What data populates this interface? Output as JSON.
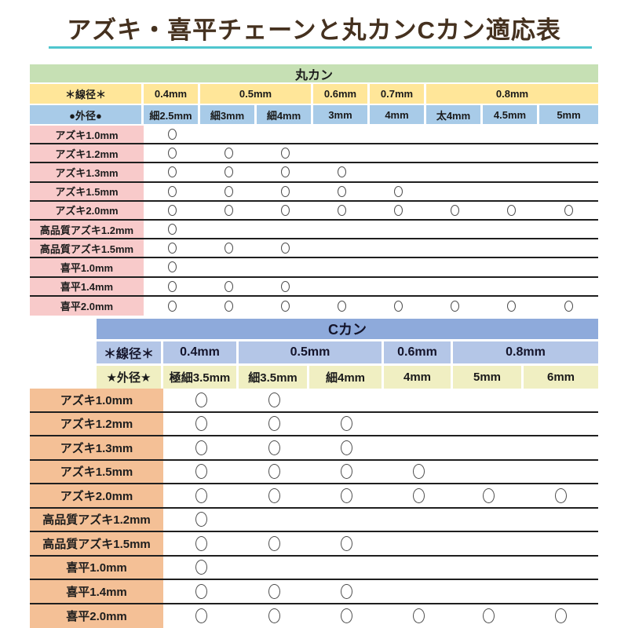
{
  "title": "アズキ・喜平チェーンと丸カンCカン適応表",
  "mark_symbol": "○",
  "colors": {
    "title_text": "#45311f",
    "title_underline": "#4fc6ce",
    "maru_header_green": "#c6e0b4",
    "maru_wire_row_yellow": "#ffe699",
    "maru_outer_row_blue": "#a8cbe8",
    "maru_label_col_pink": "#f8caca",
    "c_header_blue": "#8eaadb",
    "c_wire_row_lavender": "#b4c6e7",
    "c_outer_row_pale_yellow": "#f0efc2",
    "c_label_col_orange": "#f4c096",
    "row_separator": "#1f1f1f",
    "mark_outline": "#4e4e4e"
  },
  "chart_data": [
    {
      "type": "table",
      "title": "丸カン",
      "wire_header": "＊線径＊",
      "outer_header": "●外径●",
      "wire_groups": [
        {
          "label": "0.4mm",
          "span": 1
        },
        {
          "label": "0.5mm",
          "span": 2
        },
        {
          "label": "0.6mm",
          "span": 1
        },
        {
          "label": "0.7mm",
          "span": 1
        },
        {
          "label": "0.8mm",
          "span": 3
        }
      ],
      "outer_sizes": [
        "細2.5mm",
        "細3mm",
        "細4mm",
        "3mm",
        "4mm",
        "太4mm",
        "4.5mm",
        "5mm"
      ],
      "rows": [
        {
          "label": "アズキ1.0mm",
          "marks": [
            1,
            0,
            0,
            0,
            0,
            0,
            0,
            0
          ]
        },
        {
          "label": "アズキ1.2mm",
          "marks": [
            1,
            1,
            1,
            0,
            0,
            0,
            0,
            0
          ]
        },
        {
          "label": "アズキ1.3mm",
          "marks": [
            1,
            1,
            1,
            1,
            0,
            0,
            0,
            0
          ]
        },
        {
          "label": "アズキ1.5mm",
          "marks": [
            1,
            1,
            1,
            1,
            1,
            0,
            0,
            0
          ]
        },
        {
          "label": "アズキ2.0mm",
          "marks": [
            1,
            1,
            1,
            1,
            1,
            1,
            1,
            1
          ]
        },
        {
          "label": "高品質アズキ1.2mm",
          "marks": [
            1,
            0,
            0,
            0,
            0,
            0,
            0,
            0
          ]
        },
        {
          "label": "高品質アズキ1.5mm",
          "marks": [
            1,
            1,
            1,
            0,
            0,
            0,
            0,
            0
          ]
        },
        {
          "label": "喜平1.0mm",
          "marks": [
            1,
            0,
            0,
            0,
            0,
            0,
            0,
            0
          ]
        },
        {
          "label": "喜平1.4mm",
          "marks": [
            1,
            1,
            1,
            0,
            0,
            0,
            0,
            0
          ]
        },
        {
          "label": "喜平2.0mm",
          "marks": [
            1,
            1,
            1,
            1,
            1,
            1,
            1,
            1
          ]
        }
      ]
    },
    {
      "type": "table",
      "title": "Cカン",
      "wire_header": "＊線径＊",
      "outer_header": "★外径★",
      "wire_groups": [
        {
          "label": "0.4mm",
          "span": 1
        },
        {
          "label": "0.5mm",
          "span": 2
        },
        {
          "label": "0.6mm",
          "span": 1
        },
        {
          "label": "0.8mm",
          "span": 2
        }
      ],
      "outer_sizes": [
        "極細3.5mm",
        "細3.5mm",
        "細4mm",
        "4mm",
        "5mm",
        "6mm"
      ],
      "rows": [
        {
          "label": "アズキ1.0mm",
          "marks": [
            1,
            1,
            0,
            0,
            0,
            0
          ]
        },
        {
          "label": "アズキ1.2mm",
          "marks": [
            1,
            1,
            1,
            0,
            0,
            0
          ]
        },
        {
          "label": "アズキ1.3mm",
          "marks": [
            1,
            1,
            1,
            0,
            0,
            0
          ]
        },
        {
          "label": "アズキ1.5mm",
          "marks": [
            1,
            1,
            1,
            1,
            0,
            0
          ]
        },
        {
          "label": "アズキ2.0mm",
          "marks": [
            1,
            1,
            1,
            1,
            1,
            1
          ]
        },
        {
          "label": "高品質アズキ1.2mm",
          "marks": [
            1,
            0,
            0,
            0,
            0,
            0
          ]
        },
        {
          "label": "高品質アズキ1.5mm",
          "marks": [
            1,
            1,
            1,
            0,
            0,
            0
          ]
        },
        {
          "label": "喜平1.0mm",
          "marks": [
            1,
            0,
            0,
            0,
            0,
            0
          ]
        },
        {
          "label": "喜平1.4mm",
          "marks": [
            1,
            1,
            1,
            0,
            0,
            0
          ]
        },
        {
          "label": "喜平2.0mm",
          "marks": [
            1,
            1,
            1,
            1,
            1,
            1
          ]
        }
      ]
    }
  ]
}
